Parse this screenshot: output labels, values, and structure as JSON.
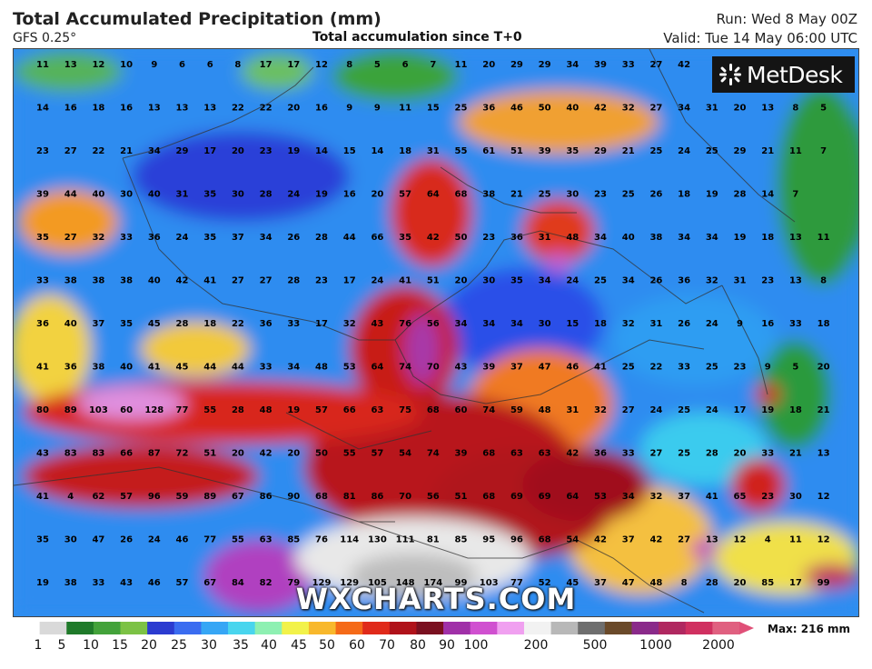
{
  "header": {
    "title": "Total Accumulated Precipitation (mm)",
    "model": "GFS 0.25°",
    "subtitle": "Total accumulation since T+0",
    "run": "Run: Wed 8 May 00Z",
    "valid": "Valid: Tue 14 May 06:00 UTC"
  },
  "logo": {
    "text": "MetDesk"
  },
  "watermark": "WXCHARTS.COM",
  "legend": {
    "max_label": "Max: 216 mm",
    "ticks": [
      "1",
      "5",
      "10",
      "15",
      "20",
      "25",
      "30",
      "35",
      "40",
      "45",
      "50",
      "60",
      "70",
      "80",
      "90",
      "100",
      "200",
      "500",
      "1000",
      "2000"
    ],
    "colors": [
      "#ffffff",
      "#d9d9d9",
      "#1f7a2a",
      "#43a23a",
      "#7cc245",
      "#2b3bd0",
      "#3a6cf0",
      "#36a6f5",
      "#49d5ee",
      "#8ef0b2",
      "#f2f24a",
      "#f8b82c",
      "#f56a18",
      "#e02a1a",
      "#b0121a",
      "#7a1020",
      "#a030a8",
      "#d050d0",
      "#f0a0f0",
      "#f2f2f2",
      "#b8b8b8",
      "#6e6e6e",
      "#6a4a2a",
      "#8a2a8a",
      "#b02860",
      "#d03060",
      "#e06080"
    ]
  },
  "values": {
    "rows": [
      [
        "11",
        "13",
        "12",
        "10",
        "9",
        "6",
        "6",
        "8",
        "17",
        "17",
        "12",
        "8",
        "5",
        "6",
        "7",
        "11",
        "20",
        "29",
        "29",
        "34",
        "39",
        "33",
        "27",
        "42",
        "",
        ""
      ],
      [
        "14",
        "16",
        "18",
        "16",
        "13",
        "13",
        "13",
        "22",
        "22",
        "20",
        "16",
        "9",
        "9",
        "11",
        "15",
        "25",
        "36",
        "46",
        "50",
        "40",
        "42",
        "32",
        "27",
        "34",
        "31",
        "20",
        "13",
        "8",
        "5"
      ],
      [
        "23",
        "27",
        "22",
        "21",
        "34",
        "29",
        "17",
        "20",
        "23",
        "19",
        "14",
        "15",
        "14",
        "18",
        "31",
        "55",
        "61",
        "51",
        "39",
        "35",
        "29",
        "21",
        "25",
        "24",
        "25",
        "29",
        "21",
        "11",
        "7"
      ],
      [
        "39",
        "44",
        "40",
        "30",
        "40",
        "31",
        "35",
        "30",
        "28",
        "24",
        "19",
        "16",
        "20",
        "57",
        "64",
        "68",
        "38",
        "21",
        "25",
        "30",
        "23",
        "25",
        "26",
        "18",
        "19",
        "28",
        "14",
        "7"
      ],
      [
        "35",
        "27",
        "32",
        "33",
        "36",
        "24",
        "35",
        "37",
        "34",
        "26",
        "28",
        "44",
        "66",
        "35",
        "42",
        "50",
        "23",
        "36",
        "31",
        "48",
        "34",
        "40",
        "38",
        "34",
        "34",
        "19",
        "18",
        "13",
        "11"
      ],
      [
        "33",
        "38",
        "38",
        "38",
        "40",
        "42",
        "41",
        "27",
        "27",
        "28",
        "23",
        "17",
        "24",
        "41",
        "51",
        "20",
        "30",
        "35",
        "34",
        "24",
        "25",
        "34",
        "26",
        "36",
        "32",
        "31",
        "23",
        "13",
        "8"
      ],
      [
        "36",
        "40",
        "37",
        "35",
        "45",
        "28",
        "18",
        "22",
        "36",
        "33",
        "17",
        "32",
        "43",
        "76",
        "56",
        "34",
        "34",
        "34",
        "30",
        "15",
        "18",
        "32",
        "31",
        "26",
        "24",
        "9",
        "16",
        "33",
        "18"
      ],
      [
        "41",
        "36",
        "38",
        "40",
        "41",
        "45",
        "44",
        "44",
        "33",
        "34",
        "48",
        "53",
        "64",
        "74",
        "70",
        "43",
        "39",
        "37",
        "47",
        "46",
        "41",
        "25",
        "22",
        "33",
        "25",
        "23",
        "9",
        "5",
        "20"
      ],
      [
        "80",
        "89",
        "103",
        "60",
        "128",
        "77",
        "55",
        "28",
        "48",
        "19",
        "57",
        "66",
        "63",
        "75",
        "68",
        "60",
        "74",
        "59",
        "48",
        "31",
        "32",
        "27",
        "24",
        "25",
        "24",
        "17",
        "19",
        "18",
        "21"
      ],
      [
        "43",
        "83",
        "83",
        "66",
        "87",
        "72",
        "51",
        "20",
        "42",
        "20",
        "50",
        "55",
        "57",
        "54",
        "74",
        "39",
        "68",
        "63",
        "63",
        "42",
        "36",
        "33",
        "27",
        "25",
        "28",
        "20",
        "33",
        "21",
        "13"
      ],
      [
        "41",
        "4",
        "62",
        "57",
        "96",
        "59",
        "89",
        "67",
        "86",
        "90",
        "68",
        "81",
        "86",
        "70",
        "56",
        "51",
        "68",
        "69",
        "69",
        "64",
        "53",
        "34",
        "32",
        "37",
        "41",
        "65",
        "23",
        "30",
        "12"
      ],
      [
        "35",
        "30",
        "47",
        "26",
        "24",
        "46",
        "77",
        "55",
        "63",
        "85",
        "76",
        "114",
        "130",
        "111",
        "81",
        "85",
        "95",
        "96",
        "68",
        "54",
        "42",
        "37",
        "42",
        "27",
        "13",
        "12",
        "4",
        "11",
        "12"
      ],
      [
        "19",
        "38",
        "33",
        "43",
        "46",
        "57",
        "67",
        "84",
        "82",
        "79",
        "129",
        "129",
        "105",
        "148",
        "174",
        "99",
        "103",
        "77",
        "52",
        "45",
        "37",
        "47",
        "48",
        "8",
        "28",
        "20",
        "85",
        "17",
        "99"
      ]
    ]
  }
}
